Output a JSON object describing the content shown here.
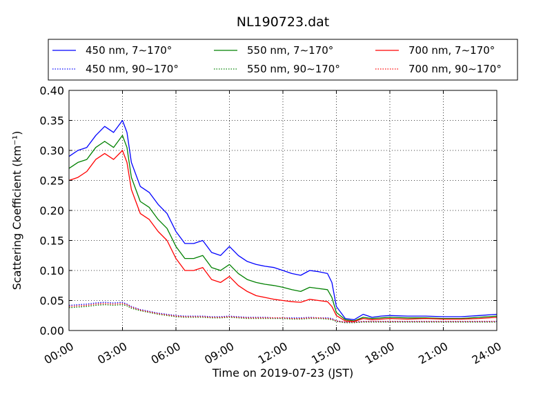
{
  "chart_data": {
    "type": "line",
    "title": "NL190723.dat",
    "xlabel": "Time on 2019-07-23 (JST)",
    "ylabel": "Scattering Coefficient (km⁻¹)",
    "xlim": [
      "00:00",
      "24:00"
    ],
    "ylim": [
      0,
      0.4
    ],
    "x_ticks": [
      "00:00",
      "03:00",
      "06:00",
      "09:00",
      "12:00",
      "15:00",
      "18:00",
      "21:00",
      "24:00"
    ],
    "y_ticks": [
      "0.00",
      "0.05",
      "0.10",
      "0.15",
      "0.20",
      "0.25",
      "0.30",
      "0.35",
      "0.40"
    ],
    "grid": true,
    "legend_position": "top",
    "x": [
      "00:00",
      "00:30",
      "01:00",
      "01:30",
      "02:00",
      "02:30",
      "03:00",
      "03:15",
      "03:30",
      "04:00",
      "04:30",
      "05:00",
      "05:30",
      "06:00",
      "06:30",
      "07:00",
      "07:30",
      "08:00",
      "08:30",
      "09:00",
      "09:30",
      "10:00",
      "10:30",
      "11:00",
      "11:30",
      "12:00",
      "12:30",
      "13:00",
      "13:30",
      "14:00",
      "14:30",
      "14:45",
      "15:00",
      "15:30",
      "16:00",
      "16:30",
      "17:00",
      "17:30",
      "18:00",
      "19:00",
      "20:00",
      "21:00",
      "22:00",
      "23:00",
      "24:00"
    ],
    "series": [
      {
        "name": "450 nm, 7∼170°",
        "color": "#0000ff",
        "style": "solid",
        "values": [
          0.29,
          0.3,
          0.305,
          0.325,
          0.34,
          0.33,
          0.35,
          0.33,
          0.28,
          0.24,
          0.23,
          0.21,
          0.195,
          0.165,
          0.145,
          0.145,
          0.15,
          0.13,
          0.125,
          0.14,
          0.125,
          0.115,
          0.11,
          0.107,
          0.105,
          0.1,
          0.095,
          0.092,
          0.1,
          0.098,
          0.095,
          0.08,
          0.04,
          0.02,
          0.018,
          0.027,
          0.022,
          0.024,
          0.025,
          0.024,
          0.024,
          0.023,
          0.023,
          0.025,
          0.027
        ]
      },
      {
        "name": "550 nm, 7∼170°",
        "color": "#008000",
        "style": "solid",
        "values": [
          0.27,
          0.28,
          0.285,
          0.305,
          0.315,
          0.305,
          0.325,
          0.305,
          0.255,
          0.215,
          0.205,
          0.185,
          0.17,
          0.14,
          0.12,
          0.12,
          0.125,
          0.105,
          0.1,
          0.11,
          0.095,
          0.085,
          0.08,
          0.077,
          0.075,
          0.072,
          0.068,
          0.065,
          0.072,
          0.07,
          0.068,
          0.055,
          0.03,
          0.018,
          0.016,
          0.022,
          0.02,
          0.021,
          0.022,
          0.021,
          0.021,
          0.02,
          0.02,
          0.022,
          0.024
        ]
      },
      {
        "name": "700 nm, 7∼170°",
        "color": "#ff0000",
        "style": "solid",
        "values": [
          0.25,
          0.255,
          0.265,
          0.285,
          0.295,
          0.285,
          0.3,
          0.28,
          0.235,
          0.195,
          0.185,
          0.165,
          0.15,
          0.12,
          0.1,
          0.1,
          0.105,
          0.085,
          0.08,
          0.09,
          0.075,
          0.065,
          0.058,
          0.055,
          0.052,
          0.05,
          0.048,
          0.047,
          0.052,
          0.05,
          0.048,
          0.04,
          0.025,
          0.016,
          0.015,
          0.02,
          0.018,
          0.019,
          0.02,
          0.019,
          0.02,
          0.019,
          0.019,
          0.02,
          0.022
        ]
      },
      {
        "name": "450 nm, 90∼170°",
        "color": "#0000ff",
        "style": "dotted",
        "values": [
          0.042,
          0.043,
          0.044,
          0.046,
          0.047,
          0.046,
          0.047,
          0.044,
          0.04,
          0.035,
          0.032,
          0.029,
          0.027,
          0.025,
          0.024,
          0.024,
          0.024,
          0.023,
          0.023,
          0.024,
          0.023,
          0.022,
          0.022,
          0.022,
          0.021,
          0.021,
          0.021,
          0.021,
          0.022,
          0.021,
          0.021,
          0.02,
          0.016,
          0.014,
          0.014,
          0.015,
          0.015,
          0.015,
          0.015,
          0.015,
          0.015,
          0.015,
          0.015,
          0.015,
          0.015
        ]
      },
      {
        "name": "550 nm, 90∼170°",
        "color": "#008000",
        "style": "dotted",
        "values": [
          0.038,
          0.039,
          0.04,
          0.042,
          0.043,
          0.042,
          0.043,
          0.041,
          0.037,
          0.033,
          0.03,
          0.027,
          0.025,
          0.023,
          0.022,
          0.022,
          0.022,
          0.021,
          0.021,
          0.022,
          0.021,
          0.02,
          0.02,
          0.02,
          0.02,
          0.02,
          0.019,
          0.019,
          0.02,
          0.02,
          0.019,
          0.018,
          0.015,
          0.013,
          0.013,
          0.014,
          0.014,
          0.014,
          0.014,
          0.014,
          0.014,
          0.014,
          0.014,
          0.014,
          0.014
        ]
      },
      {
        "name": "700 nm, 90∼170°",
        "color": "#ff0000",
        "style": "dotted",
        "values": [
          0.04,
          0.041,
          0.042,
          0.044,
          0.045,
          0.044,
          0.045,
          0.043,
          0.039,
          0.034,
          0.031,
          0.028,
          0.026,
          0.024,
          0.023,
          0.023,
          0.023,
          0.022,
          0.022,
          0.023,
          0.022,
          0.021,
          0.021,
          0.021,
          0.021,
          0.021,
          0.02,
          0.02,
          0.021,
          0.021,
          0.02,
          0.019,
          0.016,
          0.014,
          0.014,
          0.015,
          0.015,
          0.015,
          0.015,
          0.015,
          0.015,
          0.015,
          0.015,
          0.015,
          0.015
        ]
      }
    ]
  }
}
